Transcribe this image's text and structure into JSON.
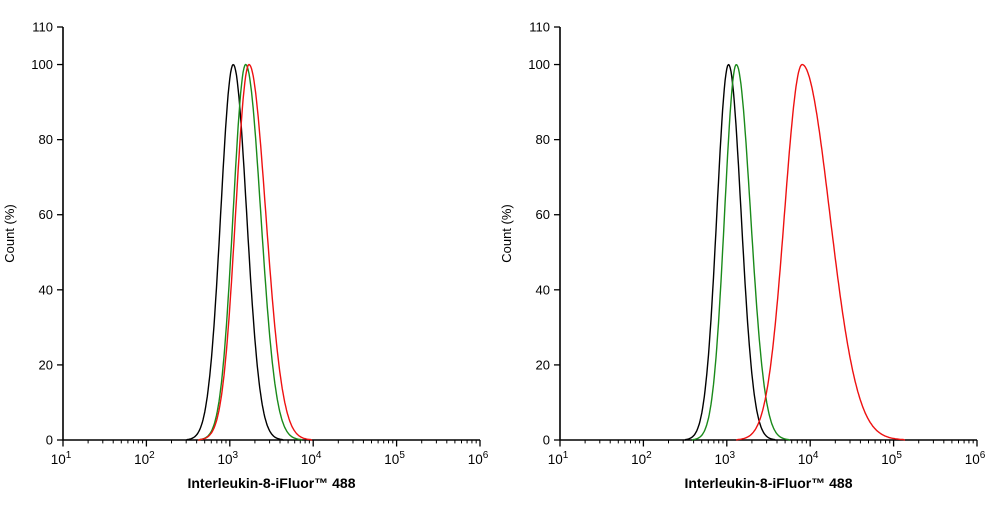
{
  "figure": {
    "background": "#ffffff",
    "axis_color": "#000000",
    "text_color": "#000000"
  },
  "chart_data": [
    {
      "name": "left-histogram",
      "type": "line",
      "title": "",
      "xlabel": "Interleukin-8-iFluor™ 488",
      "ylabel": "Count (%)",
      "x_scale": "log10",
      "xlim": [
        10,
        1000000
      ],
      "x_exponent_range": [
        1,
        6
      ],
      "ylim": [
        0,
        110
      ],
      "y_ticks": [
        0,
        20,
        40,
        60,
        80,
        100,
        110
      ],
      "grid": false,
      "legend": false,
      "series": [
        {
          "name": "black-control-peak",
          "color": "#000000",
          "peak_x": 1100,
          "peak_y": 100,
          "sigma_left_decades": 0.15,
          "sigma_right_decades": 0.16
        },
        {
          "name": "green-peak",
          "color": "#1a8a1a",
          "peak_x": 1550,
          "peak_y": 100,
          "sigma_left_decades": 0.15,
          "sigma_right_decades": 0.18
        },
        {
          "name": "red-peak",
          "color": "#ee1111",
          "peak_x": 1700,
          "peak_y": 100,
          "sigma_left_decades": 0.16,
          "sigma_right_decades": 0.2
        }
      ]
    },
    {
      "name": "right-histogram",
      "type": "line",
      "title": "",
      "xlabel": "Interleukin-8-iFluor™ 488",
      "ylabel": "Count (%)",
      "x_scale": "log10",
      "xlim": [
        10,
        1000000
      ],
      "x_exponent_range": [
        1,
        6
      ],
      "ylim": [
        0,
        110
      ],
      "y_ticks": [
        0,
        20,
        40,
        60,
        80,
        100,
        110
      ],
      "grid": false,
      "legend": false,
      "series": [
        {
          "name": "black-control-peak",
          "color": "#000000",
          "peak_x": 1050,
          "peak_y": 100,
          "sigma_left_decades": 0.14,
          "sigma_right_decades": 0.15
        },
        {
          "name": "green-peak",
          "color": "#1a8a1a",
          "peak_x": 1300,
          "peak_y": 100,
          "sigma_left_decades": 0.14,
          "sigma_right_decades": 0.17
        },
        {
          "name": "red-peak",
          "color": "#ee1111",
          "peak_x": 8000,
          "peak_y": 100,
          "sigma_left_decades": 0.21,
          "sigma_right_decades": 0.33
        }
      ]
    }
  ]
}
